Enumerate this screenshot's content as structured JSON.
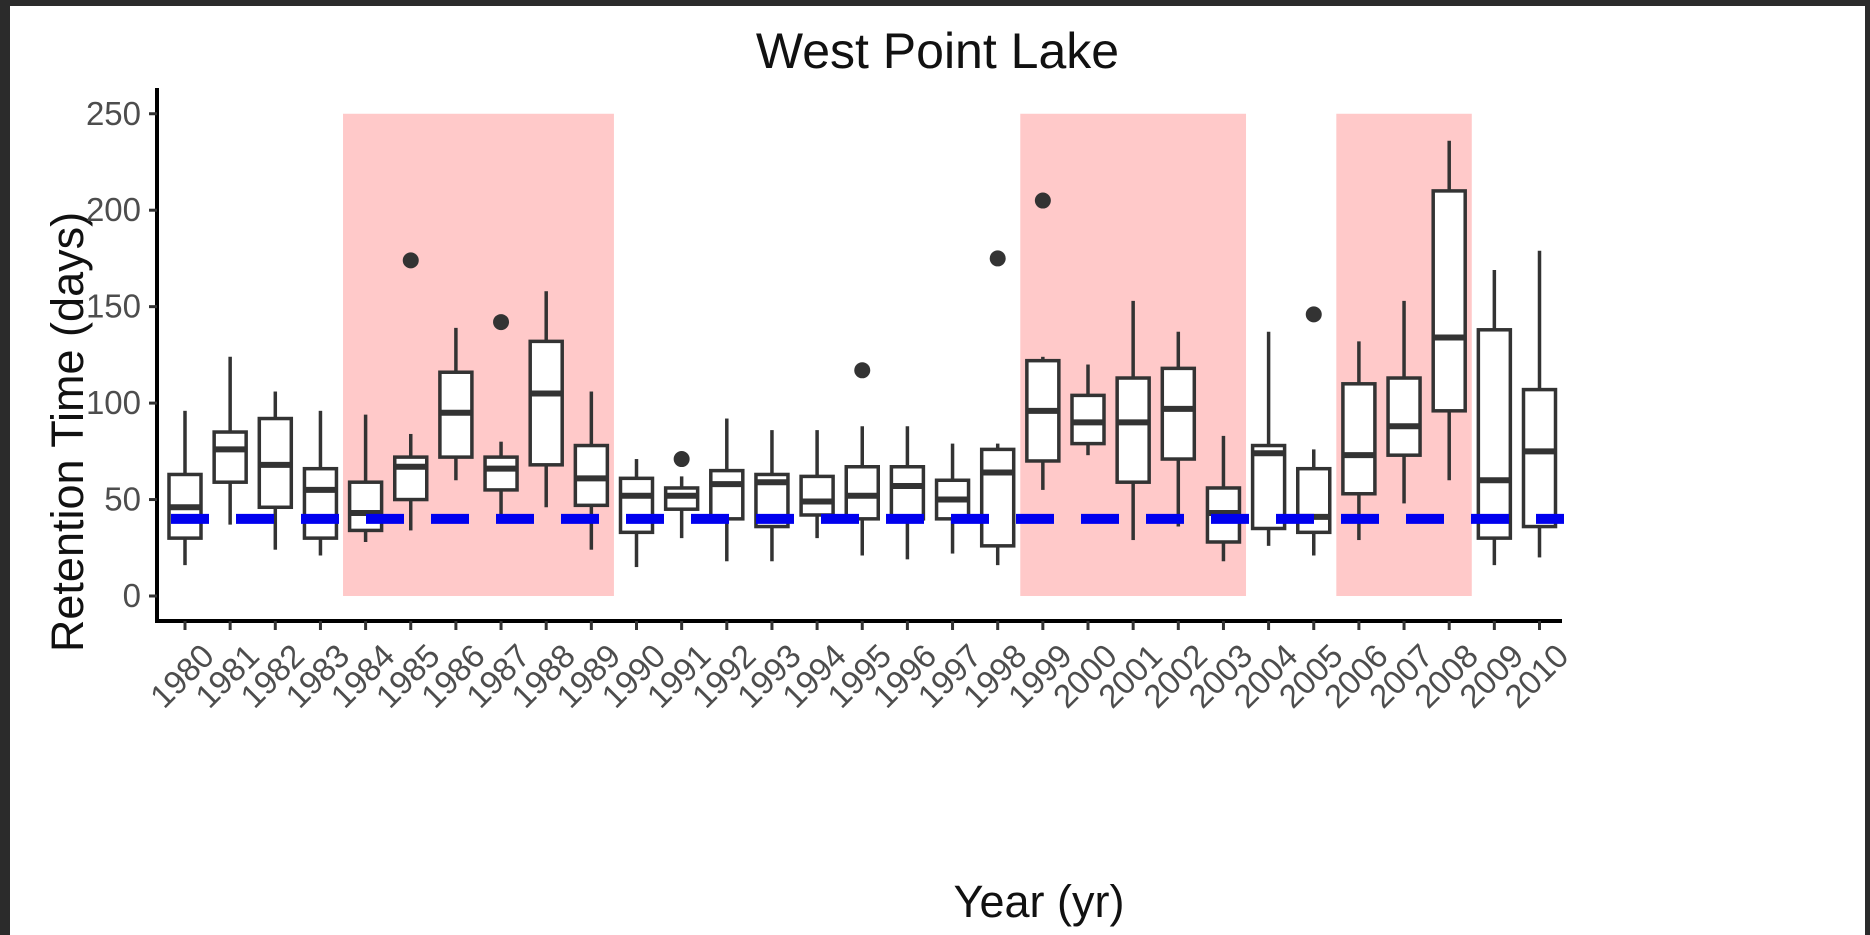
{
  "chart_data": {
    "type": "box",
    "title": "West Point Lake",
    "xlabel": "Year (yr)",
    "ylabel": "Retention Time (days)",
    "ylim": [
      -10,
      262
    ],
    "yticks": [
      0,
      50,
      100,
      150,
      200,
      250
    ],
    "categories": [
      "1980",
      "1981",
      "1982",
      "1983",
      "1984",
      "1985",
      "1986",
      "1987",
      "1988",
      "1989",
      "1990",
      "1991",
      "1992",
      "1993",
      "1994",
      "1995",
      "1996",
      "1997",
      "1998",
      "1999",
      "2000",
      "2001",
      "2002",
      "2003",
      "2004",
      "2005",
      "2006",
      "2007",
      "2008",
      "2009",
      "2010"
    ],
    "boxes": [
      {
        "year": "1980",
        "whisker_low": 16,
        "q1": 30,
        "median": 46,
        "q3": 63,
        "whisker_high": 96,
        "outliers": []
      },
      {
        "year": "1981",
        "whisker_low": 37,
        "q1": 59,
        "median": 76,
        "q3": 85,
        "whisker_high": 124,
        "outliers": []
      },
      {
        "year": "1982",
        "whisker_low": 24,
        "q1": 46,
        "median": 68,
        "q3": 92,
        "whisker_high": 106,
        "outliers": []
      },
      {
        "year": "1983",
        "whisker_low": 21,
        "q1": 30,
        "median": 55,
        "q3": 66,
        "whisker_high": 96,
        "outliers": []
      },
      {
        "year": "1984",
        "whisker_low": 28,
        "q1": 34,
        "median": 43,
        "q3": 59,
        "whisker_high": 94,
        "outliers": []
      },
      {
        "year": "1985",
        "whisker_low": 34,
        "q1": 50,
        "median": 67,
        "q3": 72,
        "whisker_high": 84,
        "outliers": [
          174
        ]
      },
      {
        "year": "1986",
        "whisker_low": 60,
        "q1": 72,
        "median": 95,
        "q3": 116,
        "whisker_high": 139,
        "outliers": []
      },
      {
        "year": "1987",
        "whisker_low": 40,
        "q1": 55,
        "median": 66,
        "q3": 72,
        "whisker_high": 80,
        "outliers": [
          142
        ]
      },
      {
        "year": "1988",
        "whisker_low": 46,
        "q1": 68,
        "median": 105,
        "q3": 132,
        "whisker_high": 158,
        "outliers": []
      },
      {
        "year": "1989",
        "whisker_low": 24,
        "q1": 47,
        "median": 61,
        "q3": 78,
        "whisker_high": 106,
        "outliers": []
      },
      {
        "year": "1990",
        "whisker_low": 15,
        "q1": 33,
        "median": 52,
        "q3": 61,
        "whisker_high": 71,
        "outliers": []
      },
      {
        "year": "1991",
        "whisker_low": 30,
        "q1": 45,
        "median": 52,
        "q3": 56,
        "whisker_high": 62,
        "outliers": [
          71
        ]
      },
      {
        "year": "1992",
        "whisker_low": 18,
        "q1": 40,
        "median": 58,
        "q3": 65,
        "whisker_high": 92,
        "outliers": []
      },
      {
        "year": "1993",
        "whisker_low": 18,
        "q1": 36,
        "median": 59,
        "q3": 63,
        "whisker_high": 86,
        "outliers": []
      },
      {
        "year": "1994",
        "whisker_low": 30,
        "q1": 42,
        "median": 49,
        "q3": 62,
        "whisker_high": 86,
        "outliers": []
      },
      {
        "year": "1995",
        "whisker_low": 21,
        "q1": 40,
        "median": 52,
        "q3": 67,
        "whisker_high": 88,
        "outliers": [
          117
        ]
      },
      {
        "year": "1996",
        "whisker_low": 19,
        "q1": 40,
        "median": 57,
        "q3": 67,
        "whisker_high": 88,
        "outliers": []
      },
      {
        "year": "1997",
        "whisker_low": 22,
        "q1": 40,
        "median": 50,
        "q3": 60,
        "whisker_high": 79,
        "outliers": []
      },
      {
        "year": "1998",
        "whisker_low": 16,
        "q1": 26,
        "median": 64,
        "q3": 76,
        "whisker_high": 79,
        "outliers": [
          175
        ]
      },
      {
        "year": "1999",
        "whisker_low": 55,
        "q1": 70,
        "median": 96,
        "q3": 122,
        "whisker_high": 124,
        "outliers": [
          205
        ]
      },
      {
        "year": "2000",
        "whisker_low": 73,
        "q1": 79,
        "median": 90,
        "q3": 104,
        "whisker_high": 120,
        "outliers": []
      },
      {
        "year": "2001",
        "whisker_low": 29,
        "q1": 59,
        "median": 90,
        "q3": 113,
        "whisker_high": 153,
        "outliers": []
      },
      {
        "year": "2002",
        "whisker_low": 36,
        "q1": 71,
        "median": 97,
        "q3": 118,
        "whisker_high": 137,
        "outliers": []
      },
      {
        "year": "2003",
        "whisker_low": 18,
        "q1": 28,
        "median": 43,
        "q3": 56,
        "whisker_high": 83,
        "outliers": []
      },
      {
        "year": "2004",
        "whisker_low": 26,
        "q1": 35,
        "median": 74,
        "q3": 78,
        "whisker_high": 137,
        "outliers": []
      },
      {
        "year": "2005",
        "whisker_low": 21,
        "q1": 33,
        "median": 41,
        "q3": 66,
        "whisker_high": 76,
        "outliers": [
          146
        ]
      },
      {
        "year": "2006",
        "whisker_low": 29,
        "q1": 53,
        "median": 73,
        "q3": 110,
        "whisker_high": 132,
        "outliers": []
      },
      {
        "year": "2007",
        "whisker_low": 48,
        "q1": 73,
        "median": 88,
        "q3": 113,
        "whisker_high": 153,
        "outliers": []
      },
      {
        "year": "2008",
        "whisker_low": 60,
        "q1": 96,
        "median": 134,
        "q3": 210,
        "whisker_high": 236,
        "outliers": []
      },
      {
        "year": "2009",
        "whisker_low": 16,
        "q1": 30,
        "median": 60,
        "q3": 138,
        "whisker_high": 169,
        "outliers": []
      },
      {
        "year": "2010",
        "whisker_low": 20,
        "q1": 36,
        "median": 75,
        "q3": 107,
        "whisker_high": 179,
        "outliers": []
      }
    ],
    "shaded_periods": [
      {
        "from": "1984",
        "to": "1989"
      },
      {
        "from": "1999",
        "to": "2003"
      },
      {
        "from": "2006",
        "to": "2008"
      }
    ],
    "reference_line": {
      "y": 40,
      "style": "dashed",
      "color": "#0000ee"
    },
    "colors": {
      "box_stroke": "#333333",
      "box_fill": "#ffffff",
      "shade": "#ffc9c9",
      "outlier": "#333333"
    },
    "grid": false
  }
}
